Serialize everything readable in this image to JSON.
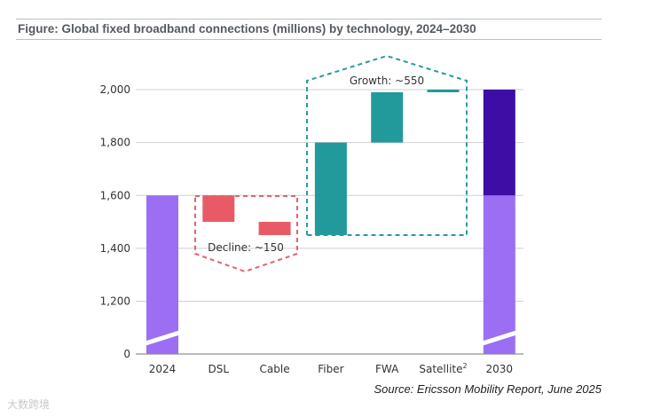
{
  "header": {
    "title": "Figure: Global fixed broadband connections (millions) by technology, 2024–2030"
  },
  "chart_data": {
    "type": "waterfall",
    "categories": [
      "2024",
      "DSL",
      "Cable",
      "Fiber",
      "FWA",
      "Satellite",
      "2030"
    ],
    "bars": [
      {
        "category": "2024",
        "kind": "total",
        "start": 0,
        "end": 1600,
        "color": "#9b6ef3"
      },
      {
        "category": "DSL",
        "kind": "decrease",
        "start": 1600,
        "end": 1500,
        "color": "#e85b66"
      },
      {
        "category": "Cable",
        "kind": "decrease",
        "start": 1500,
        "end": 1450,
        "color": "#e85b66"
      },
      {
        "category": "Fiber",
        "kind": "increase",
        "start": 1450,
        "end": 1800,
        "color": "#22999b"
      },
      {
        "category": "FWA",
        "kind": "increase",
        "start": 1800,
        "end": 1990,
        "color": "#22999b"
      },
      {
        "category": "Satellite",
        "kind": "increase",
        "start": 1990,
        "end": 2000,
        "color": "#22999b"
      },
      {
        "category": "2030",
        "kind": "total",
        "start": 0,
        "end": 2000,
        "base_value": 1600,
        "color": "#9b6ef3",
        "top_color": "#3d0da6"
      }
    ],
    "y_ticks": [
      "0",
      "1,200",
      "1,400",
      "1,600",
      "1,800",
      "2,000"
    ],
    "y_tick_values": [
      0,
      1200,
      1400,
      1600,
      1800,
      2000
    ],
    "axis_break": true,
    "grid": true,
    "x_tick_superscript": {
      "Satellite": "2"
    },
    "annotations": {
      "decline": {
        "label": "Decline: ~150",
        "color": "#e0636e"
      },
      "growth": {
        "label": "Growth: ~550",
        "color": "#2a9a9b"
      }
    }
  },
  "source": "Source: Ericsson Mobility Report, June 2025",
  "watermark": "大数跨境"
}
